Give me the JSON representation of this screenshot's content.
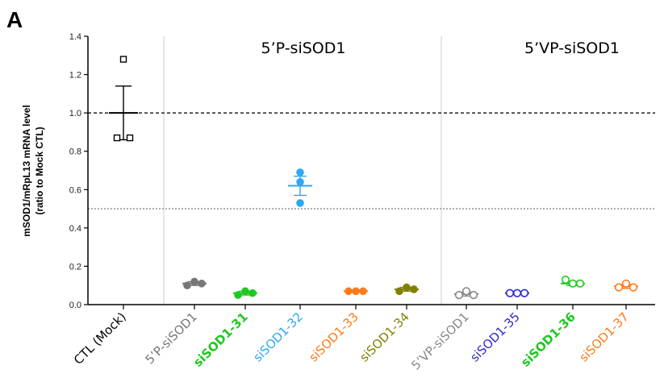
{
  "panel_letter": "A",
  "chart_data": {
    "type": "scatter",
    "ylabel_lines": [
      "mSOD1/mRpL13 mRNA level",
      "(ratio to Mock CTL)"
    ],
    "ylim": [
      0,
      1.4
    ],
    "yticks": [
      "0.0",
      "0.2",
      "0.4",
      "0.6",
      "0.8",
      "1.0",
      "1.2",
      "1.4"
    ],
    "reference_lines": [
      {
        "y": 1.0,
        "style": "dashed",
        "color": "#333333"
      },
      {
        "y": 0.5,
        "style": "dotted",
        "color": "#888888"
      }
    ],
    "group_labels": [
      "5’P-siSOD1",
      "5’VP-siSOD1"
    ],
    "categories": [
      {
        "label": "CTL (Mock)",
        "color": "#000000",
        "marker": "square-open",
        "bold": false,
        "points": [
          1.28,
          0.87,
          0.87
        ],
        "mean": 1.0,
        "err": 0.14
      },
      {
        "label": "5’P-siSOD1",
        "color": "#777777",
        "marker": "circle-filled",
        "bold": false,
        "points": [
          0.1,
          0.12,
          0.11
        ],
        "mean": 0.11,
        "err": 0.01
      },
      {
        "label": "siSOD1-31",
        "color": "#1ec81e",
        "marker": "circle-filled",
        "bold": true,
        "points": [
          0.05,
          0.07,
          0.06
        ],
        "mean": 0.06,
        "err": 0.01
      },
      {
        "label": "siSOD1-32",
        "color": "#2ea8f0",
        "marker": "circle-filled",
        "bold": false,
        "points": [
          0.69,
          0.64,
          0.53
        ],
        "mean": 0.62,
        "err": 0.05
      },
      {
        "label": "siSOD1-33",
        "color": "#ff7a1a",
        "marker": "circle-filled",
        "bold": false,
        "points": [
          0.07,
          0.07,
          0.07
        ],
        "mean": 0.07,
        "err": 0.0
      },
      {
        "label": "siSOD1-34",
        "color": "#808000",
        "marker": "circle-filled",
        "bold": false,
        "points": [
          0.07,
          0.09,
          0.08
        ],
        "mean": 0.08,
        "err": 0.01
      },
      {
        "label": "5’VP-siSOD1",
        "color": "#888888",
        "marker": "circle-open",
        "bold": false,
        "points": [
          0.05,
          0.07,
          0.05
        ],
        "mean": 0.055,
        "err": 0.01
      },
      {
        "label": "siSOD1-35",
        "color": "#2a2ad0",
        "marker": "circle-open",
        "bold": false,
        "points": [
          0.06,
          0.06,
          0.06
        ],
        "mean": 0.06,
        "err": 0.0
      },
      {
        "label": "siSOD1-36",
        "color": "#1ec81e",
        "marker": "circle-open",
        "bold": true,
        "points": [
          0.13,
          0.11,
          0.11
        ],
        "mean": 0.11,
        "err": 0.01
      },
      {
        "label": "siSOD1-37",
        "color": "#ff7a1a",
        "marker": "circle-open",
        "bold": false,
        "points": [
          0.09,
          0.11,
          0.09
        ],
        "mean": 0.095,
        "err": 0.01
      }
    ],
    "separators_after_category_index": [
      0,
      5
    ]
  }
}
